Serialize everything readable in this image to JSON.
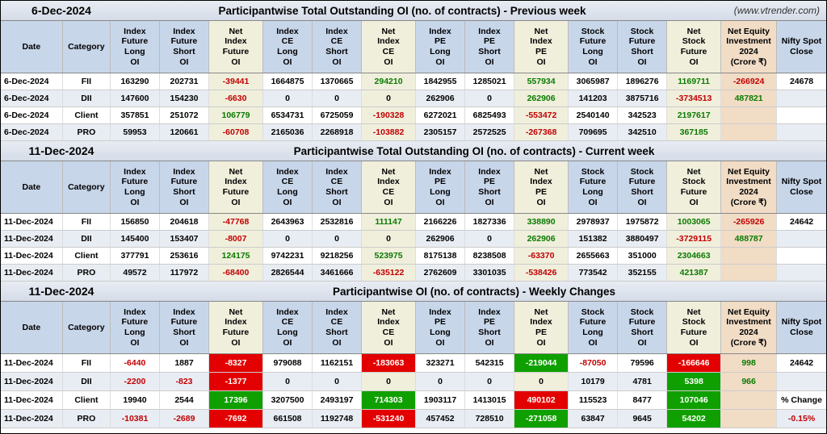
{
  "source": "(www.vtrender.com)",
  "columns": [
    "Date",
    "Category",
    "Index Future Long OI",
    "Index Future Short OI",
    "Net Index Future OI",
    "Index CE Long OI",
    "Index CE Short OI",
    "Net Index CE OI",
    "Index PE Long OI",
    "Index PE Short OI",
    "Net Index PE OI",
    "Stock Future Long OI",
    "Stock Future Short OI",
    "Net Stock Future OI",
    "Net Equity Investment 2024 (Crore ₹)",
    "Nifty Spot Close"
  ],
  "col_widths": [
    "w-date",
    "w-cat",
    "w-n",
    "w-n",
    "w-net",
    "w-n",
    "w-n",
    "w-net",
    "w-n",
    "w-n",
    "w-net",
    "w-n",
    "w-n",
    "w-net",
    "w-eq",
    "w-nf"
  ],
  "net_cols": [
    4,
    7,
    10,
    13
  ],
  "eq_col": 14,
  "sections": [
    {
      "title_date": "6-Dec-2024",
      "title": "Participantwise Total Outstanding OI (no. of contracts) - Previous week",
      "show_source": true,
      "mode": "color",
      "rows": [
        {
          "alt": false,
          "cells": [
            "6-Dec-2024",
            "FII",
            "163290",
            "202731",
            {
              "v": "-39441",
              "c": "fg-red"
            },
            "1664875",
            "1370665",
            {
              "v": "294210",
              "c": "fg-grn"
            },
            "1842955",
            "1285021",
            {
              "v": "557934",
              "c": "fg-grn"
            },
            "3065987",
            "1896276",
            {
              "v": "1169711",
              "c": "fg-grn"
            },
            {
              "v": "-266924",
              "c": "fg-red"
            },
            "24678"
          ]
        },
        {
          "alt": true,
          "cells": [
            "6-Dec-2024",
            "DII",
            "147600",
            "154230",
            {
              "v": "-6630",
              "c": "fg-red"
            },
            "0",
            "0",
            {
              "v": "0"
            },
            "262906",
            "0",
            {
              "v": "262906",
              "c": "fg-grn"
            },
            "141203",
            "3875716",
            {
              "v": "-3734513",
              "c": "fg-red"
            },
            {
              "v": "487821",
              "c": "fg-grn"
            },
            ""
          ]
        },
        {
          "alt": false,
          "cells": [
            "6-Dec-2024",
            "Client",
            "357851",
            "251072",
            {
              "v": "106779",
              "c": "fg-grn"
            },
            "6534731",
            "6725059",
            {
              "v": "-190328",
              "c": "fg-red"
            },
            "6272021",
            "6825493",
            {
              "v": "-553472",
              "c": "fg-red"
            },
            "2540140",
            "342523",
            {
              "v": "2197617",
              "c": "fg-grn"
            },
            "",
            ""
          ]
        },
        {
          "alt": true,
          "cells": [
            "6-Dec-2024",
            "PRO",
            "59953",
            "120661",
            {
              "v": "-60708",
              "c": "fg-red"
            },
            "2165036",
            "2268918",
            {
              "v": "-103882",
              "c": "fg-red"
            },
            "2305157",
            "2572525",
            {
              "v": "-267368",
              "c": "fg-red"
            },
            "709695",
            "342510",
            {
              "v": "367185",
              "c": "fg-grn"
            },
            "",
            ""
          ]
        }
      ]
    },
    {
      "title_date": "11-Dec-2024",
      "title": "Participantwise Total Outstanding OI (no. of contracts) - Current week",
      "show_source": false,
      "mode": "color",
      "rows": [
        {
          "alt": false,
          "cells": [
            "11-Dec-2024",
            "FII",
            "156850",
            "204618",
            {
              "v": "-47768",
              "c": "fg-red"
            },
            "2643963",
            "2532816",
            {
              "v": "111147",
              "c": "fg-grn"
            },
            "2166226",
            "1827336",
            {
              "v": "338890",
              "c": "fg-grn"
            },
            "2978937",
            "1975872",
            {
              "v": "1003065",
              "c": "fg-grn"
            },
            {
              "v": "-265926",
              "c": "fg-red"
            },
            "24642"
          ]
        },
        {
          "alt": true,
          "cells": [
            "11-Dec-2024",
            "DII",
            "145400",
            "153407",
            {
              "v": "-8007",
              "c": "fg-red"
            },
            "0",
            "0",
            {
              "v": "0"
            },
            "262906",
            "0",
            {
              "v": "262906",
              "c": "fg-grn"
            },
            "151382",
            "3880497",
            {
              "v": "-3729115",
              "c": "fg-red"
            },
            {
              "v": "488787",
              "c": "fg-grn"
            },
            ""
          ]
        },
        {
          "alt": false,
          "cells": [
            "11-Dec-2024",
            "Client",
            "377791",
            "253616",
            {
              "v": "124175",
              "c": "fg-grn"
            },
            "9742231",
            "9218256",
            {
              "v": "523975",
              "c": "fg-grn"
            },
            "8175138",
            "8238508",
            {
              "v": "-63370",
              "c": "fg-red"
            },
            "2655663",
            "351000",
            {
              "v": "2304663",
              "c": "fg-grn"
            },
            "",
            ""
          ]
        },
        {
          "alt": true,
          "cells": [
            "11-Dec-2024",
            "PRO",
            "49572",
            "117972",
            {
              "v": "-68400",
              "c": "fg-red"
            },
            "2826544",
            "3461666",
            {
              "v": "-635122",
              "c": "fg-red"
            },
            "2762609",
            "3301035",
            {
              "v": "-538426",
              "c": "fg-red"
            },
            "773542",
            "352155",
            {
              "v": "421387",
              "c": "fg-grn"
            },
            "",
            ""
          ]
        }
      ]
    },
    {
      "title_date": "11-Dec-2024",
      "title": "Participantwise OI (no. of contracts) - Weekly Changes",
      "show_source": false,
      "mode": "box",
      "rows": [
        {
          "alt": false,
          "cells": [
            "11-Dec-2024",
            "FII",
            {
              "v": "-6440",
              "c": "fg-red"
            },
            "1887",
            {
              "v": "-8327",
              "c": "box-red"
            },
            "979088",
            "1162151",
            {
              "v": "-183063",
              "c": "box-red"
            },
            "323271",
            "542315",
            {
              "v": "-219044",
              "c": "box-grn"
            },
            {
              "v": "-87050",
              "c": "fg-red"
            },
            "79596",
            {
              "v": "-166646",
              "c": "box-red"
            },
            {
              "v": "998",
              "c": "fg-grn"
            },
            "24642"
          ]
        },
        {
          "alt": true,
          "cells": [
            "11-Dec-2024",
            "DII",
            {
              "v": "-2200",
              "c": "fg-red"
            },
            {
              "v": "-823",
              "c": "fg-red"
            },
            {
              "v": "-1377",
              "c": "box-red"
            },
            "0",
            "0",
            {
              "v": "0"
            },
            "0",
            "0",
            {
              "v": "0"
            },
            "10179",
            "4781",
            {
              "v": "5398",
              "c": "box-grn"
            },
            {
              "v": "966",
              "c": "fg-grn"
            },
            ""
          ]
        },
        {
          "alt": false,
          "cells": [
            "11-Dec-2024",
            "Client",
            "19940",
            "2544",
            {
              "v": "17396",
              "c": "box-grn"
            },
            "3207500",
            "2493197",
            {
              "v": "714303",
              "c": "box-grn"
            },
            "1903117",
            "1413015",
            {
              "v": "490102",
              "c": "box-red"
            },
            "115523",
            "8477",
            {
              "v": "107046",
              "c": "box-grn"
            },
            "",
            "% Change"
          ]
        },
        {
          "alt": true,
          "cells": [
            "11-Dec-2024",
            "PRO",
            {
              "v": "-10381",
              "c": "fg-red"
            },
            {
              "v": "-2689",
              "c": "fg-red"
            },
            {
              "v": "-7692",
              "c": "box-red"
            },
            "661508",
            "1192748",
            {
              "v": "-531240",
              "c": "box-red"
            },
            "457452",
            "728510",
            {
              "v": "-271058",
              "c": "box-grn"
            },
            "63847",
            "9645",
            {
              "v": "54202",
              "c": "box-grn"
            },
            "",
            {
              "v": "-0.15%",
              "c": "fg-red"
            }
          ]
        }
      ]
    }
  ]
}
